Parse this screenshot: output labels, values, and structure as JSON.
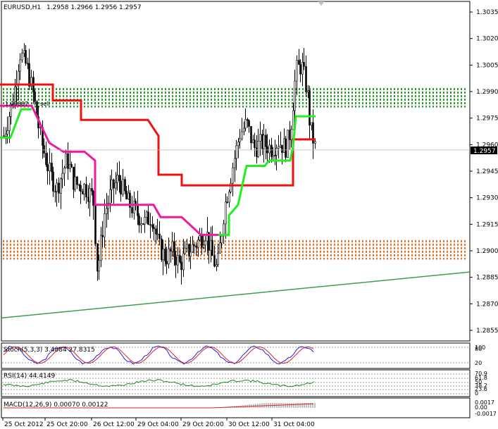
{
  "chart_data": [
    {
      "type": "candlestick",
      "symbol": "EURUSD,H1",
      "ohlc": "1.2958 1.2966 1.2956 1.2957",
      "current_price": "1.2957",
      "y_ticks": [
        "1.3035",
        "1.3020",
        "1.3005",
        "1.2990",
        "1.2975",
        "1.2960",
        "1.2945",
        "1.2930",
        "1.2915",
        "1.2900",
        "1.2885",
        "1.2870",
        "1.2855"
      ],
      "x_ticks": [
        "25 Oct 2012",
        "25 Oct 20:00",
        "26 Oct 12:00",
        "29 Oct 04:00",
        "29 Oct 20:00",
        "30 Oct 12:00",
        "31 Oct 04:00"
      ],
      "small_label": "1.29887",
      "small_label2": "sell",
      "ylim": [
        1.2849,
        1.3041
      ],
      "resistance_zone": [
        1.2981,
        1.2992
      ],
      "support_zone": [
        1.2895,
        1.2906
      ],
      "trendline": {
        "from": 1.2862,
        "to": 1.2888
      },
      "red_stop": [
        [
          0,
          1.2994
        ],
        [
          75,
          1.2994
        ],
        [
          75,
          1.2985
        ],
        [
          115,
          1.2985
        ],
        [
          115,
          1.2974
        ],
        [
          210,
          1.2974
        ],
        [
          225,
          1.2965
        ],
        [
          225,
          1.2943
        ],
        [
          258,
          1.2943
        ],
        [
          258,
          1.2937
        ],
        [
          416,
          1.2937
        ],
        [
          416,
          1.2963
        ],
        [
          448,
          1.2963
        ]
      ],
      "pink_stop": [
        [
          0,
          1.2982
        ],
        [
          45,
          1.2982
        ],
        [
          70,
          1.2961
        ],
        [
          90,
          1.2956
        ],
        [
          120,
          1.2956
        ],
        [
          135,
          1.2951
        ],
        [
          135,
          1.2926
        ],
        [
          218,
          1.2926
        ],
        [
          228,
          1.2919
        ],
        [
          258,
          1.2919
        ],
        [
          285,
          1.2909
        ],
        [
          310,
          1.2909
        ]
      ],
      "green_stop": [
        [
          0,
          1.2964
        ],
        [
          15,
          1.2964
        ],
        [
          30,
          1.298
        ],
        [
          45,
          1.298
        ]
      ],
      "green_stop2": [
        [
          310,
          1.2909
        ],
        [
          325,
          1.2909
        ],
        [
          325,
          1.292
        ],
        [
          338,
          1.2926
        ],
        [
          345,
          1.2939
        ],
        [
          350,
          1.2948
        ],
        [
          376,
          1.2948
        ],
        [
          382,
          1.2951
        ],
        [
          412,
          1.2951
        ],
        [
          416,
          1.2959
        ],
        [
          420,
          1.2976
        ],
        [
          448,
          1.2976
        ]
      ],
      "close_path": [
        [
          5,
          1.2965
        ],
        [
          18,
          1.2985
        ],
        [
          28,
          1.3012
        ],
        [
          38,
          1.3004
        ],
        [
          46,
          1.299
        ],
        [
          58,
          1.2962
        ],
        [
          70,
          1.2944
        ],
        [
          80,
          1.2935
        ],
        [
          95,
          1.2952
        ],
        [
          105,
          1.2938
        ],
        [
          120,
          1.2936
        ],
        [
          132,
          1.293
        ],
        [
          138,
          1.2888
        ],
        [
          148,
          1.2921
        ],
        [
          158,
          1.2934
        ],
        [
          168,
          1.2941
        ],
        [
          180,
          1.2928
        ],
        [
          192,
          1.2922
        ],
        [
          205,
          1.2916
        ],
        [
          215,
          1.292
        ],
        [
          225,
          1.2902
        ],
        [
          235,
          1.2896
        ],
        [
          245,
          1.29
        ],
        [
          255,
          1.2892
        ],
        [
          265,
          1.2899
        ],
        [
          280,
          1.2905
        ],
        [
          292,
          1.2911
        ],
        [
          300,
          1.2898
        ],
        [
          308,
          1.2889
        ],
        [
          318,
          1.2924
        ],
        [
          330,
          1.2948
        ],
        [
          340,
          1.2966
        ],
        [
          350,
          1.2972
        ],
        [
          360,
          1.2958
        ],
        [
          372,
          1.2961
        ],
        [
          385,
          1.2958
        ],
        [
          395,
          1.2962
        ],
        [
          405,
          1.2958
        ],
        [
          412,
          1.2968
        ],
        [
          420,
          1.3002
        ],
        [
          428,
          1.3005
        ],
        [
          436,
          1.299
        ],
        [
          440,
          1.297
        ],
        [
          445,
          1.2962
        ],
        [
          448,
          1.2957
        ]
      ]
    },
    {
      "type": "line",
      "indicator": "Stoch",
      "header": "Stoch(5,3,3) 3.4884 27.8315",
      "levels": [
        "80",
        "20"
      ],
      "top_label": "100"
    },
    {
      "type": "line",
      "indicator": "RSI",
      "header": "RSI(14) 44.4149",
      "levels": [
        "70.9",
        "61.8",
        "50",
        "38.2",
        "23.6",
        "0"
      ]
    },
    {
      "type": "bar",
      "indicator": "MACD",
      "header": "MACD(12,26,9) 0.00070 0.00122",
      "levels": [
        "0.0017",
        "0.00",
        "-0.0017"
      ]
    }
  ]
}
